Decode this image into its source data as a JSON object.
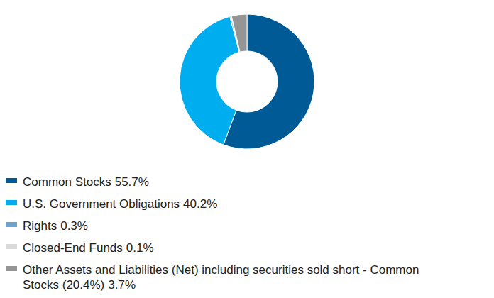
{
  "chart_data": {
    "type": "pie",
    "categories": [
      "Common Stocks",
      "U.S. Government Obligations",
      "Rights",
      "Closed-End Funds",
      "Other Assets and Liabilities (Net) including securities sold short - Common Stocks (20.4%)"
    ],
    "values": [
      55.7,
      40.2,
      0.3,
      0.1,
      3.7
    ],
    "value_labels": [
      "55.7%",
      "40.2%",
      "0.3%",
      "0.1%",
      "3.7%"
    ],
    "colors": [
      "#005a96",
      "#00aeef",
      "#6ca4cc",
      "#d9d9d9",
      "#959595"
    ],
    "legend": "bottom"
  }
}
